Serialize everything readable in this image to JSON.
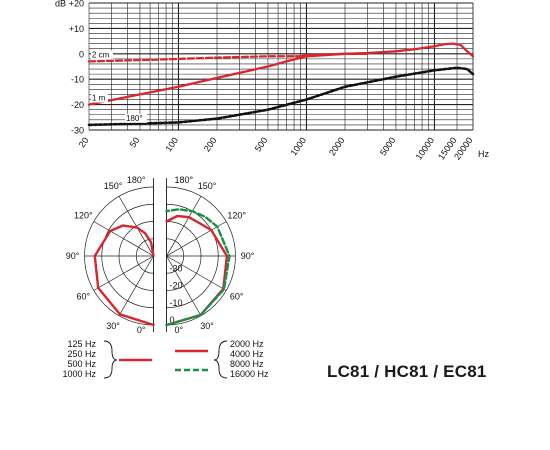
{
  "product_title": "LC81 / HC81 / EC81",
  "colors": {
    "red": "#d8262c",
    "black": "#111111",
    "green": "#17914a",
    "grid": "#222222"
  },
  "chart_data": [
    {
      "type": "line",
      "x_scale": "log",
      "xlim": [
        20,
        20000
      ],
      "ylim": [
        -30,
        20
      ],
      "ylabel": "dB",
      "xlabel": "Hz",
      "y_ticks": [
        "+20",
        "+10",
        "0",
        "-10",
        "-20",
        "-30"
      ],
      "x_ticks": [
        "20",
        "50",
        "100",
        "200",
        "500",
        "1000",
        "2000",
        "5000",
        "10000",
        "15000",
        "20000"
      ],
      "grid": true,
      "series": [
        {
          "name": "2 cm",
          "color": "red",
          "dash": "dashed",
          "x": [
            20,
            50,
            100,
            200,
            500,
            700,
            900
          ],
          "y": [
            -3,
            -2.5,
            -2,
            -1.5,
            -1,
            -1,
            -1
          ]
        },
        {
          "name": "2 cm",
          "color": "red",
          "dash": "solid",
          "x": [
            900,
            1000,
            2000,
            3000,
            5000,
            7000,
            10000,
            12000,
            14000,
            16000,
            18000,
            20000
          ],
          "y": [
            -1,
            -0.5,
            0,
            0.3,
            1,
            1.8,
            3,
            3.8,
            4,
            3.5,
            1,
            -1
          ]
        },
        {
          "name": "1 m",
          "color": "red",
          "dash": "solid",
          "x": [
            20,
            50,
            100,
            200,
            500,
            700,
            1000,
            2000,
            3000
          ],
          "y": [
            -20,
            -16,
            -13,
            -9.5,
            -5,
            -3,
            -1,
            0,
            0
          ]
        },
        {
          "name": "180°",
          "color": "black",
          "dash": "dotted",
          "x": [
            20,
            50,
            100,
            200,
            500,
            1000,
            2000,
            5000,
            10000,
            15000,
            18000,
            20000
          ],
          "y": [
            -28,
            -27.5,
            -27,
            -25.5,
            -22,
            -18,
            -13,
            -9,
            -6.5,
            -5.5,
            -6,
            -8
          ]
        }
      ]
    },
    {
      "type": "polar",
      "radial_ticks": [
        "0",
        "-10",
        "-20",
        "-30"
      ],
      "radial_range": [
        -40,
        0
      ],
      "angle_labels_left": [
        "180°",
        "150°",
        "120°",
        "90°",
        "60°",
        "30°",
        "0°"
      ],
      "angle_labels_right": [
        "180°",
        "150°",
        "120°",
        "90°",
        "60°",
        "30°",
        "0°"
      ],
      "series": [
        {
          "name": "125 Hz, 250 Hz, 500 Hz, 1000 Hz",
          "color": "red",
          "dash": "solid",
          "side": "left",
          "angles": [
            0,
            30,
            60,
            90,
            120,
            135,
            150,
            160,
            170,
            180
          ],
          "db": [
            0,
            -1,
            -3,
            -6,
            -11,
            -15,
            -21,
            -26,
            -32,
            -40
          ]
        },
        {
          "name": "2000 Hz, 4000 Hz",
          "color": "red",
          "dash": "solid",
          "side": "right",
          "angles": [
            0,
            30,
            60,
            90,
            120,
            135,
            150,
            165,
            180
          ],
          "db": [
            0,
            -0.5,
            -2,
            -5,
            -10,
            -13,
            -14,
            -16,
            -20
          ]
        },
        {
          "name": "8000 Hz, 16000 Hz",
          "color": "green",
          "dash": "dashed",
          "side": "right",
          "angles": [
            0,
            30,
            60,
            90,
            120,
            135,
            150,
            165,
            180
          ],
          "db": [
            0,
            -0.5,
            -1.5,
            -3.5,
            -6,
            -8,
            -10,
            -12,
            -14
          ]
        }
      ]
    }
  ],
  "curve_labels": {
    "near": "2 cm",
    "far": "1 m",
    "rear": "180°"
  },
  "legend": {
    "group_left": [
      "125 Hz",
      "250 Hz",
      "500 Hz",
      "1000 Hz"
    ],
    "group_right_solid": [
      "2000 Hz",
      "4000 Hz"
    ],
    "group_right_dashed": [
      "8000 Hz",
      "16000 Hz"
    ]
  }
}
